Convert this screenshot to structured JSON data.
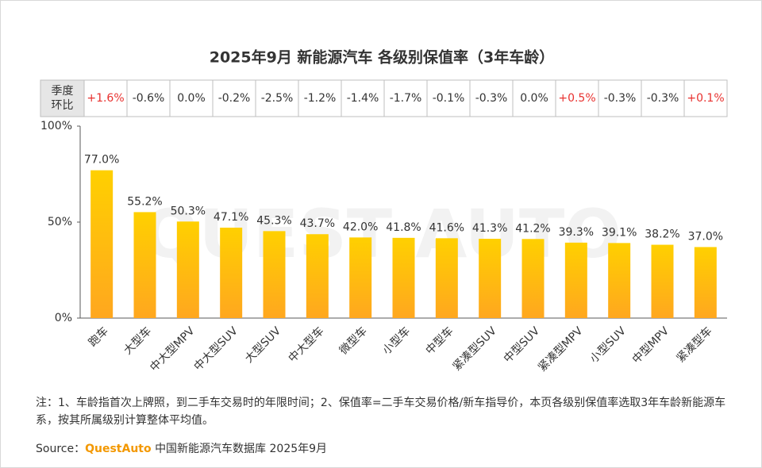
{
  "chart_data": {
    "type": "bar",
    "title": "2025年9月 新能源汽车 各级别保值率（3年车龄）",
    "categories": [
      "跑车",
      "大型车",
      "中大型MPV",
      "中大型SUV",
      "大型SUV",
      "中大型车",
      "微型车",
      "小型车",
      "中型车",
      "紧凑型SUV",
      "中型SUV",
      "紧凑型MPV",
      "小型SUV",
      "中型MPV",
      "紧凑型车"
    ],
    "values": [
      77.0,
      55.2,
      50.3,
      47.1,
      45.3,
      43.7,
      42.0,
      41.8,
      41.6,
      41.3,
      41.2,
      39.3,
      39.1,
      38.2,
      37.0
    ],
    "value_labels": [
      "77.0%",
      "55.2%",
      "50.3%",
      "47.1%",
      "45.3%",
      "43.7%",
      "42.0%",
      "41.8%",
      "41.6%",
      "41.3%",
      "41.2%",
      "39.3%",
      "39.1%",
      "38.2%",
      "37.0%"
    ],
    "gradient": [
      "#ffd000",
      "#ffa71f"
    ],
    "ylim": [
      0,
      100
    ],
    "yticks": [
      {
        "value": 0,
        "label": "0%"
      },
      {
        "value": 50,
        "label": "50%"
      },
      {
        "value": 100,
        "label": "100%"
      }
    ]
  },
  "qoq_table": {
    "header": [
      "季度",
      "环比"
    ],
    "cells": [
      "+1.6%",
      "-0.6%",
      "0.0%",
      "-0.2%",
      "-2.5%",
      "-1.2%",
      "-1.4%",
      "-1.7%",
      "-0.1%",
      "-0.3%",
      "0.0%",
      "+0.5%",
      "-0.3%",
      "-0.3%",
      "+0.1%"
    ],
    "positive_color": "#e8312f"
  },
  "watermark": "QUEST AUTO",
  "note": "注：1、车龄指首次上牌照，到二手车交易时的年限时间；2、保值率=二手车交易价格/新车指导价，本页各级别保值率选取3年车龄新能源车系，按其所属级别计算整体平均值。",
  "source": {
    "label": "Source：",
    "brand": "QuestAuto",
    "text": "中国新能源汽车数据库 2025年9月"
  }
}
